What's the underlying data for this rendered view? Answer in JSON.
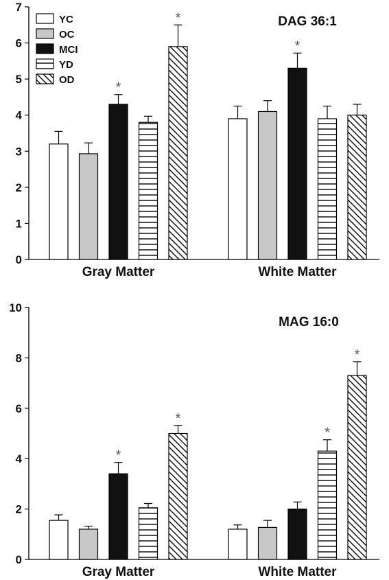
{
  "legend": [
    {
      "label": "YC",
      "fill": "white"
    },
    {
      "label": "OC",
      "fill": "gray"
    },
    {
      "label": "MCI",
      "fill": "black"
    },
    {
      "label": "YD",
      "fill": "hlines"
    },
    {
      "label": "OD",
      "fill": "diag"
    }
  ],
  "colors": {
    "gray": "#c8c8c8",
    "black": "#111111",
    "axis": "#000000",
    "star": "#555555"
  },
  "chart_data": [
    {
      "type": "bar",
      "title": "DAG 36:1",
      "xlabel": "",
      "ylabel": "",
      "categories": [
        "Gray Matter",
        "White Matter"
      ],
      "ylim": [
        0,
        7
      ],
      "yticks": [
        0,
        1,
        2,
        3,
        4,
        5,
        6,
        7
      ],
      "legend_position": "top-left",
      "grid": false,
      "series": [
        {
          "name": "YC",
          "values": [
            3.2,
            3.9
          ],
          "errors": [
            0.35,
            0.35
          ],
          "significant": [
            false,
            false
          ]
        },
        {
          "name": "OC",
          "values": [
            2.93,
            4.1
          ],
          "errors": [
            0.3,
            0.3
          ],
          "significant": [
            false,
            false
          ]
        },
        {
          "name": "MCI",
          "values": [
            4.3,
            5.3
          ],
          "errors": [
            0.27,
            0.42
          ],
          "significant": [
            true,
            true
          ]
        },
        {
          "name": "YD",
          "values": [
            3.8,
            3.9
          ],
          "errors": [
            0.17,
            0.35
          ],
          "significant": [
            false,
            false
          ]
        },
        {
          "name": "OD",
          "values": [
            5.9,
            4.0
          ],
          "errors": [
            0.6,
            0.3
          ],
          "significant": [
            true,
            false
          ]
        }
      ],
      "significance_marker": "*"
    },
    {
      "type": "bar",
      "title": "MAG 16:0",
      "xlabel": "",
      "ylabel": "",
      "categories": [
        "Gray Matter",
        "White Matter"
      ],
      "ylim": [
        0,
        10
      ],
      "yticks": [
        0,
        2,
        4,
        6,
        8,
        10
      ],
      "grid": false,
      "series": [
        {
          "name": "YC",
          "values": [
            1.55,
            1.2
          ],
          "errors": [
            0.22,
            0.17
          ],
          "significant": [
            false,
            false
          ]
        },
        {
          "name": "OC",
          "values": [
            1.2,
            1.27
          ],
          "errors": [
            0.12,
            0.28
          ],
          "significant": [
            false,
            false
          ]
        },
        {
          "name": "MCI",
          "values": [
            3.4,
            2.0
          ],
          "errors": [
            0.45,
            0.28
          ],
          "significant": [
            true,
            false
          ]
        },
        {
          "name": "YD",
          "values": [
            2.05,
            4.3
          ],
          "errors": [
            0.17,
            0.45
          ],
          "significant": [
            false,
            true
          ]
        },
        {
          "name": "OD",
          "values": [
            5.0,
            7.3
          ],
          "errors": [
            0.32,
            0.55
          ],
          "significant": [
            true,
            true
          ]
        }
      ],
      "significance_marker": "*"
    }
  ]
}
